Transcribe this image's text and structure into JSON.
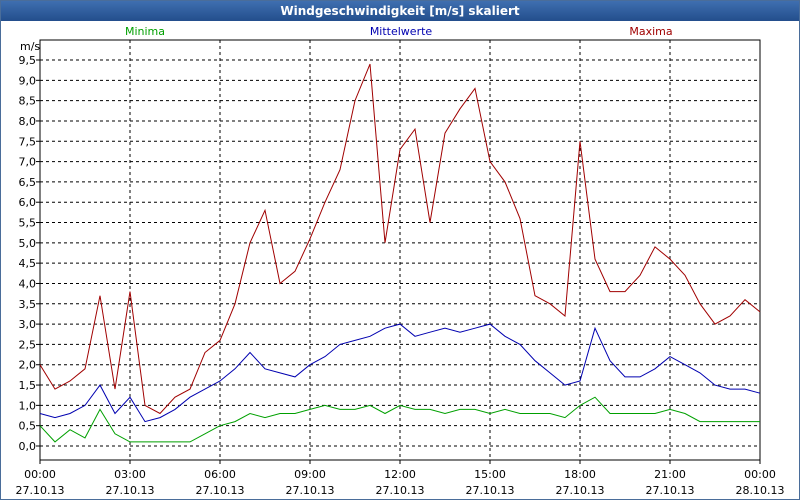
{
  "window": {
    "title": "Windgeschwindigkeit [m/s] skaliert"
  },
  "chart_data": {
    "type": "line",
    "title": "Windgeschwindigkeit [m/s] skaliert",
    "ylabel": "m/s",
    "xlabel": "",
    "ylim": [
      0.0,
      9.5
    ],
    "yticks": [
      "0,0",
      "0,5",
      "1,0",
      "1,5",
      "2,0",
      "2,5",
      "3,0",
      "3,5",
      "4,0",
      "4,5",
      "5,0",
      "5,5",
      "6,0",
      "6,5",
      "7,0",
      "7,5",
      "8,0",
      "8,5",
      "9,0",
      "9,5"
    ],
    "xticks": [
      {
        "time": "00:00",
        "date": "27.10.13"
      },
      {
        "time": "03:00",
        "date": "27.10.13"
      },
      {
        "time": "06:00",
        "date": "27.10.13"
      },
      {
        "time": "09:00",
        "date": "27.10.13"
      },
      {
        "time": "12:00",
        "date": "27.10.13"
      },
      {
        "time": "15:00",
        "date": "27.10.13"
      },
      {
        "time": "18:00",
        "date": "27.10.13"
      },
      {
        "time": "21:00",
        "date": "27.10.13"
      },
      {
        "time": "00:00",
        "date": "28.10.13"
      }
    ],
    "xlim_hours": [
      0,
      24
    ],
    "grid": true,
    "legend_position": "top",
    "series": [
      {
        "name": "Minima",
        "color": "#00a000",
        "x_hours": [
          0,
          0.5,
          1,
          1.5,
          2,
          2.5,
          3,
          3.5,
          4,
          4.5,
          5,
          5.5,
          6,
          6.5,
          7,
          7.5,
          8,
          8.5,
          9,
          9.5,
          10,
          10.5,
          11,
          11.5,
          12,
          12.5,
          13,
          13.5,
          14,
          14.5,
          15,
          15.5,
          16,
          16.5,
          17,
          17.5,
          18,
          18.5,
          19,
          19.5,
          20,
          20.5,
          21,
          21.5,
          22,
          22.5,
          23,
          23.5,
          24
        ],
        "values": [
          0.5,
          0.1,
          0.4,
          0.2,
          0.9,
          0.3,
          0.1,
          0.1,
          0.1,
          0.1,
          0.1,
          0.3,
          0.5,
          0.6,
          0.8,
          0.7,
          0.8,
          0.8,
          0.9,
          1.0,
          0.9,
          0.9,
          1.0,
          0.8,
          1.0,
          0.9,
          0.9,
          0.8,
          0.9,
          0.9,
          0.8,
          0.9,
          0.8,
          0.8,
          0.8,
          0.7,
          1.0,
          1.2,
          0.8,
          0.8,
          0.8,
          0.8,
          0.9,
          0.8,
          0.6,
          0.6,
          0.6,
          0.6,
          0.6
        ]
      },
      {
        "name": "Mittelwerte",
        "color": "#0000b0",
        "x_hours": [
          0,
          0.5,
          1,
          1.5,
          2,
          2.5,
          3,
          3.5,
          4,
          4.5,
          5,
          5.5,
          6,
          6.5,
          7,
          7.5,
          8,
          8.5,
          9,
          9.5,
          10,
          10.5,
          11,
          11.5,
          12,
          12.5,
          13,
          13.5,
          14,
          14.5,
          15,
          15.5,
          16,
          16.5,
          17,
          17.5,
          18,
          18.5,
          19,
          19.5,
          20,
          20.5,
          21,
          21.5,
          22,
          22.5,
          23,
          23.5,
          24
        ],
        "values": [
          0.8,
          0.7,
          0.8,
          1.0,
          1.5,
          0.8,
          1.2,
          0.6,
          0.7,
          0.9,
          1.2,
          1.4,
          1.6,
          1.9,
          2.3,
          1.9,
          1.8,
          1.7,
          2.0,
          2.2,
          2.5,
          2.6,
          2.7,
          2.9,
          3.0,
          2.7,
          2.8,
          2.9,
          2.8,
          2.9,
          3.0,
          2.7,
          2.5,
          2.1,
          1.8,
          1.5,
          1.6,
          2.9,
          2.1,
          1.7,
          1.7,
          1.9,
          2.2,
          2.0,
          1.8,
          1.5,
          1.4,
          1.4,
          1.3
        ]
      },
      {
        "name": "Maxima",
        "color": "#a00000",
        "x_hours": [
          0,
          0.5,
          1,
          1.5,
          2,
          2.5,
          3,
          3.5,
          4,
          4.5,
          5,
          5.5,
          6,
          6.5,
          7,
          7.5,
          8,
          8.5,
          9,
          9.5,
          10,
          10.5,
          11,
          11.5,
          12,
          12.5,
          13,
          13.5,
          14,
          14.5,
          15,
          15.5,
          16,
          16.5,
          17,
          17.5,
          18,
          18.5,
          19,
          19.5,
          20,
          20.5,
          21,
          21.5,
          22,
          22.5,
          23,
          23.5,
          24
        ],
        "values": [
          2.0,
          1.4,
          1.6,
          1.9,
          3.7,
          1.4,
          3.8,
          1.0,
          0.8,
          1.2,
          1.4,
          2.3,
          2.6,
          3.5,
          5.0,
          5.8,
          4.0,
          4.3,
          5.1,
          6.0,
          6.8,
          8.5,
          9.4,
          5.0,
          7.3,
          7.8,
          5.5,
          7.7,
          8.3,
          8.8,
          7.0,
          6.5,
          5.6,
          3.7,
          3.5,
          3.2,
          7.5,
          4.6,
          3.8,
          3.8,
          4.2,
          4.9,
          4.6,
          4.2,
          3.5,
          3.0,
          3.2,
          3.6,
          3.3
        ]
      }
    ]
  }
}
